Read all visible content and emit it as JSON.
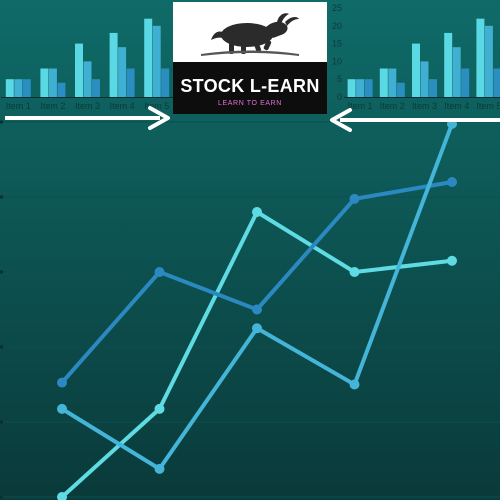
{
  "logo": {
    "brand": "STOCK L-EARN",
    "tagline": "LEARN TO EARN"
  },
  "colors": {
    "bg_top": "#0f6b68",
    "bg_bottom": "#0a3a3a",
    "bar_light": "#5ad8e3",
    "bar_mid": "#3fb0d1",
    "bar_dark": "#2a8ec0",
    "line_light": "#5fdce3",
    "line_mid": "#44b5d8",
    "line_dark": "#2b88c0",
    "arrow": "#ffffff"
  },
  "chart_data": [
    {
      "type": "bar",
      "categories": [
        "Item 1",
        "Item 2",
        "Item 3",
        "Item 4",
        "Item 5"
      ],
      "ylim": [
        0,
        25
      ],
      "yticks": [],
      "series": [
        {
          "values": [
            5,
            8,
            15,
            18,
            22
          ]
        },
        {
          "values": [
            5,
            8,
            10,
            14,
            20
          ]
        },
        {
          "values": [
            5,
            4,
            5,
            8,
            8
          ]
        }
      ]
    },
    {
      "type": "bar",
      "categories": [
        "Item 1",
        "Item 2",
        "Item 3",
        "Item 4",
        "Item 5"
      ],
      "ylim": [
        0,
        25
      ],
      "yticks": [
        "0",
        "5",
        "10",
        "15",
        "20",
        "25"
      ],
      "series": [
        {
          "values": [
            5,
            8,
            15,
            18,
            22
          ]
        },
        {
          "values": [
            5,
            8,
            10,
            14,
            20
          ]
        },
        {
          "values": [
            5,
            4,
            5,
            8,
            8
          ]
        }
      ]
    },
    {
      "type": "line",
      "x": [
        1,
        2,
        3,
        4,
        5
      ],
      "series": [
        {
          "values": [
            0,
            2.35,
            7.6,
            6.0,
            6.3
          ]
        },
        {
          "values": [
            3.05,
            6.0,
            5.0,
            7.95,
            8.4
          ]
        },
        {
          "values": [
            2.35,
            0.75,
            4.5,
            3.0,
            9.95
          ]
        }
      ]
    }
  ]
}
